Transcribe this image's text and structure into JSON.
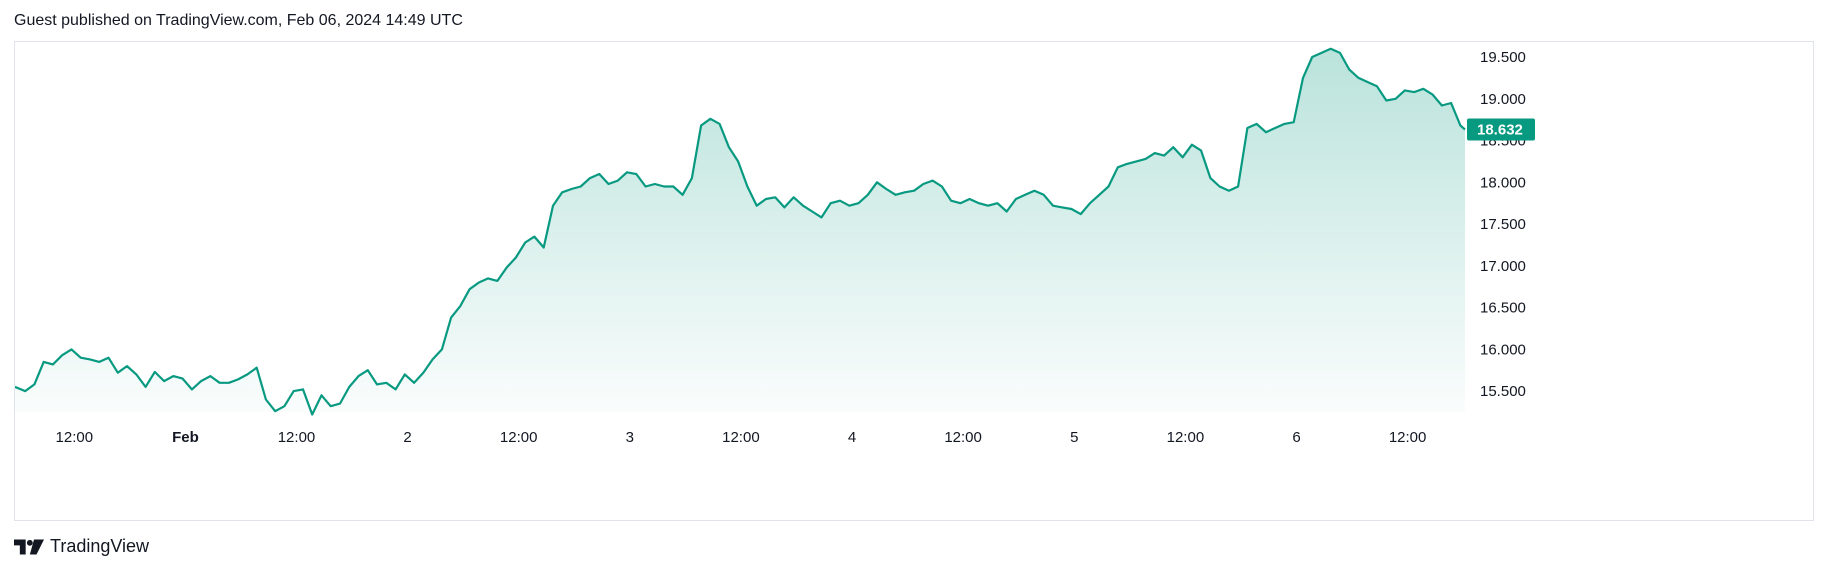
{
  "header": {
    "published": "Guest published on TradingView.com, Feb 06, 2024 14:49 UTC"
  },
  "footer": {
    "brand": "TradingView",
    "logo_icon": "tradingview-logo-icon"
  },
  "colors": {
    "line": "#089981",
    "fill_top": "rgba(8,153,129,0.28)",
    "fill_bottom": "rgba(8,153,129,0.02)",
    "badge": "#089981",
    "axis_text": "#131722",
    "border": "#e0e3eb"
  },
  "chart_data": {
    "type": "area",
    "last_value_label": "18.632",
    "y_ticks": [
      "15.500",
      "16.000",
      "16.500",
      "17.000",
      "17.500",
      "18.000",
      "18.500",
      "19.000",
      "19.500"
    ],
    "x_ticks": [
      "12:00",
      "Feb",
      "12:00",
      "2",
      "12:00",
      "3",
      "12:00",
      "4",
      "12:00",
      "5",
      "12:00",
      "6",
      "12:00"
    ],
    "ylim": [
      15.25,
      19.68
    ],
    "x_hours_range": [
      -18.4,
      138.2
    ],
    "series": [
      {
        "points": [
          [
            -18.4,
            15.55
          ],
          [
            -17.3,
            15.5
          ],
          [
            -16.3,
            15.58
          ],
          [
            -15.3,
            15.85
          ],
          [
            -14.3,
            15.82
          ],
          [
            -13.3,
            15.93
          ],
          [
            -12.3,
            16.0
          ],
          [
            -11.3,
            15.9
          ],
          [
            -10.3,
            15.88
          ],
          [
            -9.3,
            15.85
          ],
          [
            -8.3,
            15.9
          ],
          [
            -7.3,
            15.72
          ],
          [
            -6.3,
            15.8
          ],
          [
            -5.3,
            15.7
          ],
          [
            -4.3,
            15.55
          ],
          [
            -3.3,
            15.73
          ],
          [
            -2.3,
            15.62
          ],
          [
            -1.3,
            15.68
          ],
          [
            -0.3,
            15.65
          ],
          [
            0.7,
            15.52
          ],
          [
            1.7,
            15.62
          ],
          [
            2.7,
            15.68
          ],
          [
            3.7,
            15.6
          ],
          [
            4.7,
            15.6
          ],
          [
            5.7,
            15.64
          ],
          [
            6.7,
            15.7
          ],
          [
            7.7,
            15.78
          ],
          [
            8.7,
            15.4
          ],
          [
            9.7,
            15.26
          ],
          [
            10.7,
            15.32
          ],
          [
            11.7,
            15.5
          ],
          [
            12.7,
            15.52
          ],
          [
            13.7,
            15.22
          ],
          [
            14.7,
            15.45
          ],
          [
            15.7,
            15.32
          ],
          [
            16.7,
            15.35
          ],
          [
            17.7,
            15.55
          ],
          [
            18.7,
            15.68
          ],
          [
            19.7,
            15.75
          ],
          [
            20.7,
            15.58
          ],
          [
            21.7,
            15.6
          ],
          [
            22.7,
            15.52
          ],
          [
            23.7,
            15.7
          ],
          [
            24.7,
            15.6
          ],
          [
            25.7,
            15.72
          ],
          [
            26.7,
            15.88
          ],
          [
            27.7,
            16.0
          ],
          [
            28.7,
            16.38
          ],
          [
            29.7,
            16.52
          ],
          [
            30.7,
            16.72
          ],
          [
            31.7,
            16.8
          ],
          [
            32.7,
            16.85
          ],
          [
            33.7,
            16.82
          ],
          [
            34.7,
            16.98
          ],
          [
            35.7,
            17.1
          ],
          [
            36.7,
            17.28
          ],
          [
            37.7,
            17.35
          ],
          [
            38.7,
            17.22
          ],
          [
            39.7,
            17.72
          ],
          [
            40.7,
            17.88
          ],
          [
            41.7,
            17.92
          ],
          [
            42.7,
            17.95
          ],
          [
            43.7,
            18.05
          ],
          [
            44.7,
            18.1
          ],
          [
            45.7,
            17.98
          ],
          [
            46.7,
            18.02
          ],
          [
            47.7,
            18.12
          ],
          [
            48.7,
            18.1
          ],
          [
            49.7,
            17.95
          ],
          [
            50.7,
            17.98
          ],
          [
            51.7,
            17.95
          ],
          [
            52.7,
            17.95
          ],
          [
            53.7,
            17.85
          ],
          [
            54.7,
            18.05
          ],
          [
            55.7,
            18.68
          ],
          [
            56.7,
            18.76
          ],
          [
            57.7,
            18.7
          ],
          [
            58.7,
            18.42
          ],
          [
            59.7,
            18.25
          ],
          [
            60.7,
            17.95
          ],
          [
            61.7,
            17.72
          ],
          [
            62.7,
            17.8
          ],
          [
            63.7,
            17.82
          ],
          [
            64.7,
            17.7
          ],
          [
            65.7,
            17.82
          ],
          [
            66.7,
            17.72
          ],
          [
            67.7,
            17.65
          ],
          [
            68.7,
            17.58
          ],
          [
            69.7,
            17.75
          ],
          [
            70.7,
            17.78
          ],
          [
            71.7,
            17.72
          ],
          [
            72.7,
            17.75
          ],
          [
            73.7,
            17.85
          ],
          [
            74.7,
            18.0
          ],
          [
            75.7,
            17.92
          ],
          [
            76.7,
            17.85
          ],
          [
            77.7,
            17.88
          ],
          [
            78.7,
            17.9
          ],
          [
            79.7,
            17.98
          ],
          [
            80.7,
            18.02
          ],
          [
            81.7,
            17.95
          ],
          [
            82.7,
            17.78
          ],
          [
            83.7,
            17.75
          ],
          [
            84.7,
            17.8
          ],
          [
            85.7,
            17.75
          ],
          [
            86.7,
            17.72
          ],
          [
            87.7,
            17.75
          ],
          [
            88.7,
            17.65
          ],
          [
            89.7,
            17.8
          ],
          [
            90.7,
            17.85
          ],
          [
            91.7,
            17.9
          ],
          [
            92.7,
            17.85
          ],
          [
            93.7,
            17.72
          ],
          [
            94.7,
            17.7
          ],
          [
            95.7,
            17.68
          ],
          [
            96.7,
            17.62
          ],
          [
            97.7,
            17.75
          ],
          [
            98.7,
            17.85
          ],
          [
            99.7,
            17.95
          ],
          [
            100.7,
            18.18
          ],
          [
            101.7,
            18.22
          ],
          [
            102.7,
            18.25
          ],
          [
            103.7,
            18.28
          ],
          [
            104.7,
            18.35
          ],
          [
            105.7,
            18.32
          ],
          [
            106.7,
            18.42
          ],
          [
            107.7,
            18.3
          ],
          [
            108.7,
            18.45
          ],
          [
            109.7,
            18.38
          ],
          [
            110.7,
            18.05
          ],
          [
            111.7,
            17.95
          ],
          [
            112.7,
            17.9
          ],
          [
            113.7,
            17.95
          ],
          [
            114.7,
            18.65
          ],
          [
            115.7,
            18.7
          ],
          [
            116.7,
            18.6
          ],
          [
            117.7,
            18.65
          ],
          [
            118.7,
            18.7
          ],
          [
            119.7,
            18.72
          ],
          [
            120.7,
            19.25
          ],
          [
            121.7,
            19.5
          ],
          [
            122.7,
            19.55
          ],
          [
            123.7,
            19.6
          ],
          [
            124.7,
            19.55
          ],
          [
            125.7,
            19.35
          ],
          [
            126.7,
            19.25
          ],
          [
            127.7,
            19.2
          ],
          [
            128.7,
            19.15
          ],
          [
            129.7,
            18.98
          ],
          [
            130.7,
            19.0
          ],
          [
            131.7,
            19.1
          ],
          [
            132.7,
            19.08
          ],
          [
            133.7,
            19.12
          ],
          [
            134.7,
            19.05
          ],
          [
            135.7,
            18.92
          ],
          [
            136.7,
            18.95
          ],
          [
            137.7,
            18.68
          ],
          [
            138.2,
            18.632
          ]
        ]
      }
    ]
  }
}
